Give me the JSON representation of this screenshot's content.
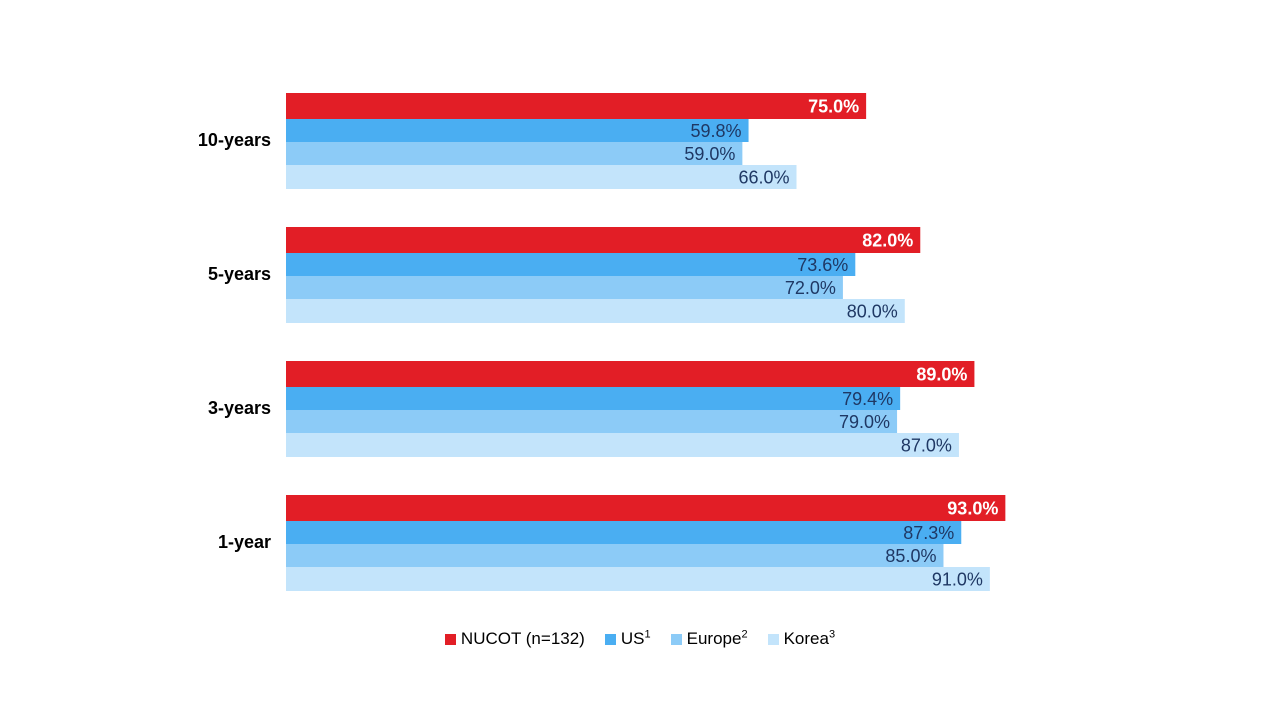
{
  "chart_data": {
    "type": "bar",
    "orientation": "horizontal",
    "categories": [
      "10-years",
      "5-years",
      "3-years",
      "1-year"
    ],
    "xlim": [
      0,
      100
    ],
    "grid": false,
    "legend_placement": "bottom-center",
    "series": [
      {
        "name": "NUCOT (n=132)",
        "sup": "",
        "color": "#e21e26",
        "values": [
          75.0,
          82.0,
          89.0,
          93.0
        ],
        "labels": [
          "75.0%",
          "82.0%",
          "89.0%",
          "93.0%"
        ]
      },
      {
        "name": "US",
        "sup": "1",
        "color": "#4aaef2",
        "values": [
          59.8,
          73.6,
          79.4,
          87.3
        ],
        "labels": [
          "59.8%",
          "73.6%",
          "79.4%",
          "87.3%"
        ]
      },
      {
        "name": "Europe",
        "sup": "2",
        "color": "#8ccbf7",
        "values": [
          59.0,
          72.0,
          79.0,
          85.0
        ],
        "labels": [
          "59.0%",
          "72.0%",
          "79.0%",
          "85.0%"
        ]
      },
      {
        "name": "Korea",
        "sup": "3",
        "color": "#c3e4fb",
        "values": [
          66.0,
          80.0,
          87.0,
          91.0
        ],
        "labels": [
          "66.0%",
          "80.0%",
          "87.0%",
          "91.0%"
        ]
      }
    ]
  }
}
